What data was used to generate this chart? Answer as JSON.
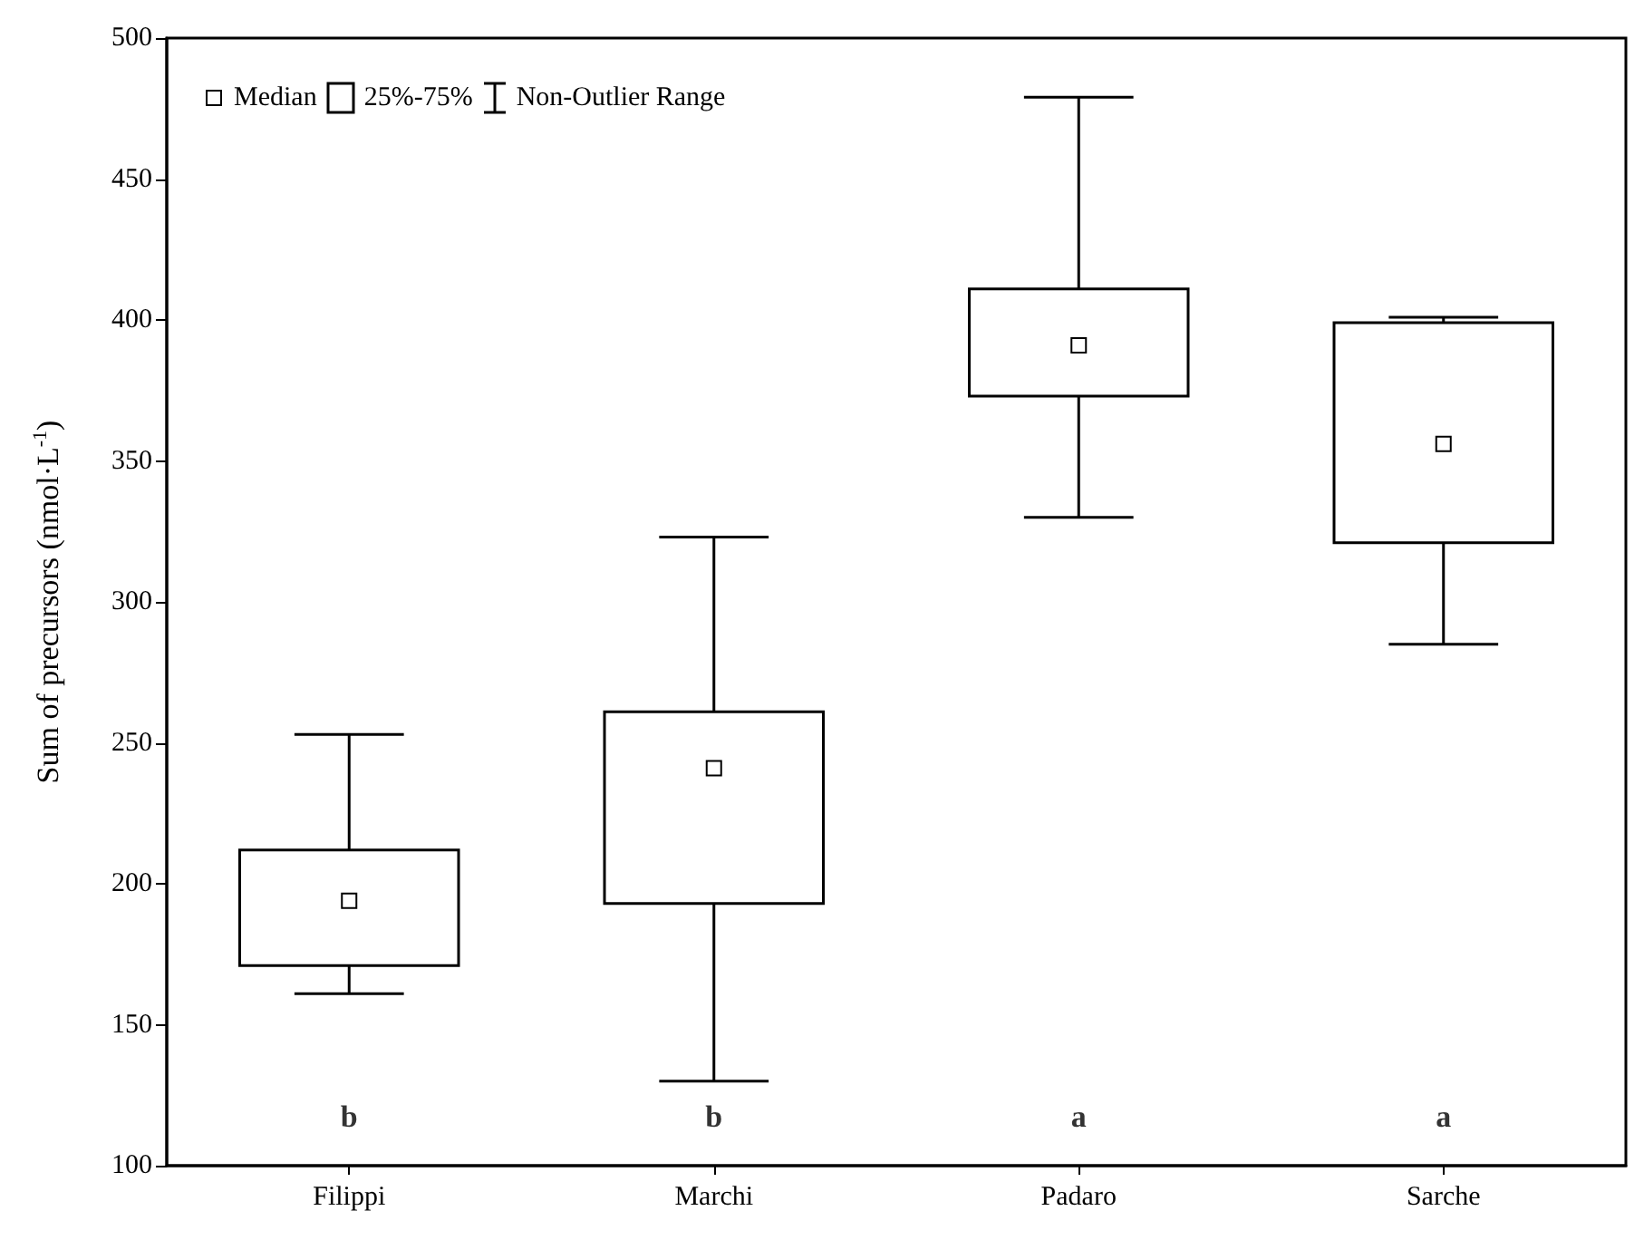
{
  "chart_data": {
    "type": "box",
    "ylabel": "Sum of precursors (nmol·L$^{-1}$)",
    "categories": [
      "Filippi",
      "Marchi",
      "Padaro",
      "Sarche"
    ],
    "series": [
      {
        "color": "#000000",
        "boxes": [
          {
            "low": 161,
            "q1": 171,
            "median": 194,
            "q3": 212,
            "high": 253
          },
          {
            "low": 130,
            "q1": 193,
            "median": 241,
            "q3": 261,
            "high": 323
          },
          {
            "low": 330,
            "q1": 373,
            "median": 391,
            "q3": 411,
            "high": 479
          },
          {
            "low": 285,
            "q1": 321,
            "median": 356,
            "q3": 399,
            "high": 401
          }
        ]
      }
    ],
    "ylim": [
      100,
      500
    ],
    "yticks": [
      100,
      150,
      200,
      250,
      300,
      350,
      400,
      450,
      500
    ],
    "grid": false,
    "marker": "square",
    "annotations": [
      "Median",
      "25%-75%",
      "Non-Outlier Range",
      "b",
      "b",
      "a",
      "a"
    ]
  }
}
